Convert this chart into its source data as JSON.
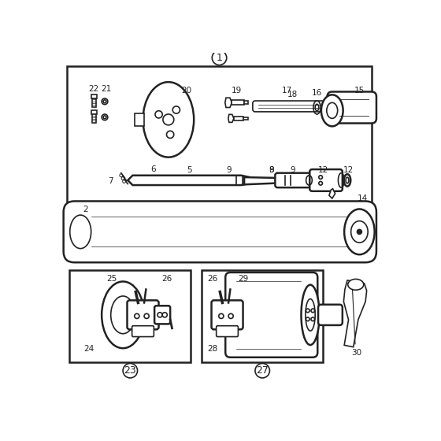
{
  "bg_color": "#ffffff",
  "line_color": "#222222",
  "fig_width": 5.6,
  "fig_height": 5.6,
  "dpi": 100
}
